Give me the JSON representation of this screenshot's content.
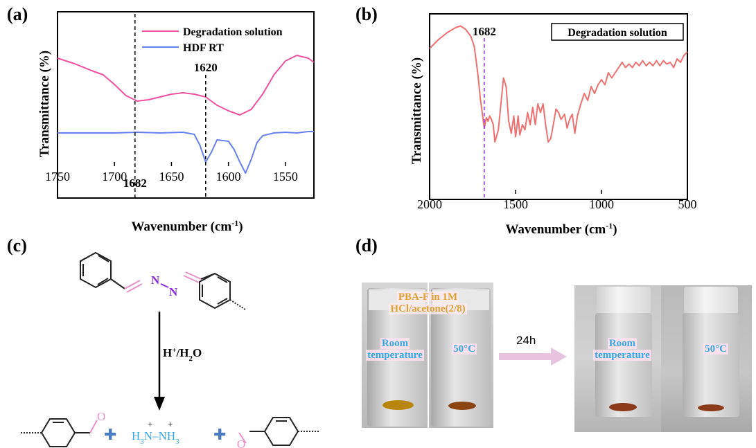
{
  "panels": {
    "a": "(a)",
    "b": "(b)",
    "c": "(c)",
    "d": "(d)"
  },
  "chart_data": [
    {
      "type": "line",
      "panel": "a",
      "xlabel": "Wavenumber (cm",
      "xlabel_sup": "-1",
      "xlabel_end": ")",
      "ylabel": "Transmittance (%)",
      "xlim": [
        1750,
        1525
      ],
      "xticks": [
        1750,
        1700,
        1650,
        1600,
        1550
      ],
      "legend_position": "top-right",
      "series": [
        {
          "name": "Degradation solution",
          "color": "#f050a0",
          "x": [
            1750,
            1735,
            1720,
            1710,
            1700,
            1690,
            1680,
            1670,
            1660,
            1650,
            1640,
            1630,
            1620,
            1610,
            1600,
            1590,
            1580,
            1570,
            1560,
            1550,
            1540,
            1530,
            1525
          ],
          "y": [
            0.78,
            0.74,
            0.69,
            0.66,
            0.59,
            0.51,
            0.47,
            0.48,
            0.5,
            0.52,
            0.53,
            0.52,
            0.5,
            0.44,
            0.4,
            0.37,
            0.41,
            0.52,
            0.66,
            0.76,
            0.8,
            0.78,
            0.75
          ]
        },
        {
          "name": "HDF RT",
          "color": "#6680f0",
          "x": [
            1750,
            1700,
            1680,
            1660,
            1640,
            1630,
            1625,
            1620,
            1615,
            1610,
            1600,
            1595,
            1590,
            1585,
            1580,
            1575,
            1570,
            1560,
            1550,
            1540,
            1530,
            1525
          ],
          "y": [
            0.24,
            0.24,
            0.245,
            0.24,
            0.245,
            0.23,
            0.15,
            0.03,
            0.1,
            0.19,
            0.18,
            0.12,
            0.03,
            -0.05,
            0.05,
            0.17,
            0.22,
            0.24,
            0.245,
            0.24,
            0.25,
            0.25
          ]
        }
      ],
      "annotations": [
        {
          "x": 1682,
          "label": "1682"
        },
        {
          "x": 1620,
          "label": "1620"
        }
      ]
    },
    {
      "type": "line",
      "panel": "b",
      "xlabel": "Wavenumber (cm",
      "xlabel_sup": "-1",
      "xlabel_end": ")",
      "ylabel": "Transmittance (%)",
      "xlim": [
        2000,
        500
      ],
      "xticks": [
        2000,
        1500,
        1000,
        500
      ],
      "legend_position": "top-right",
      "series": [
        {
          "name": "Degradation solution",
          "color": "#f07070",
          "x": [
            2000,
            1950,
            1900,
            1850,
            1820,
            1790,
            1760,
            1740,
            1720,
            1705,
            1690,
            1682,
            1670,
            1660,
            1650,
            1640,
            1630,
            1620,
            1600,
            1585,
            1570,
            1555,
            1540,
            1525,
            1510,
            1500,
            1495,
            1485,
            1475,
            1460,
            1445,
            1430,
            1415,
            1400,
            1385,
            1370,
            1355,
            1340,
            1325,
            1310,
            1295,
            1280,
            1265,
            1250,
            1235,
            1215,
            1200,
            1185,
            1170,
            1155,
            1140,
            1120,
            1100,
            1080,
            1060,
            1040,
            1020,
            1000,
            980,
            960,
            940,
            920,
            900,
            880,
            860,
            840,
            820,
            800,
            780,
            760,
            740,
            720,
            700,
            680,
            660,
            640,
            620,
            600,
            580,
            560,
            540,
            520,
            500
          ],
          "y": [
            0.84,
            0.89,
            0.93,
            0.96,
            0.97,
            0.95,
            0.91,
            0.85,
            0.7,
            0.55,
            0.44,
            0.38,
            0.44,
            0.42,
            0.45,
            0.43,
            0.4,
            0.3,
            0.37,
            0.52,
            0.67,
            0.62,
            0.42,
            0.35,
            0.45,
            0.33,
            0.36,
            0.45,
            0.34,
            0.4,
            0.37,
            0.47,
            0.4,
            0.5,
            0.4,
            0.52,
            0.47,
            0.52,
            0.4,
            0.3,
            0.32,
            0.4,
            0.49,
            0.47,
            0.43,
            0.46,
            0.38,
            0.43,
            0.46,
            0.35,
            0.45,
            0.52,
            0.58,
            0.54,
            0.62,
            0.58,
            0.63,
            0.66,
            0.63,
            0.7,
            0.67,
            0.7,
            0.73,
            0.76,
            0.73,
            0.75,
            0.73,
            0.76,
            0.74,
            0.77,
            0.74,
            0.76,
            0.74,
            0.77,
            0.74,
            0.77,
            0.75,
            0.76,
            0.73,
            0.78,
            0.76,
            0.8,
            0.82
          ]
        }
      ],
      "annotations": [
        {
          "x": 1682,
          "label": "1682"
        }
      ]
    }
  ],
  "scheme": {
    "reagent": "H",
    "reagent_sup": "+",
    "reagent_rest": "/H",
    "reagent_sub": "2",
    "reagent_end": "O",
    "azine_n": "N",
    "hydrazine": {
      "h3": "H",
      "sub3": "3",
      "n": "N",
      "plus": "+",
      "dash": "–",
      "nh3": "NH",
      "sub3b": "3"
    },
    "plus_sign": "✚",
    "aldehyde_o": "O"
  },
  "photos": {
    "sample_label_1": "PBA-F in 1M",
    "sample_label_2": "HCl/acetone(2/8)",
    "arrow_label": "24h",
    "cond_room_1": "Room",
    "cond_room_2": "temperature",
    "cond_50": "50°C"
  }
}
